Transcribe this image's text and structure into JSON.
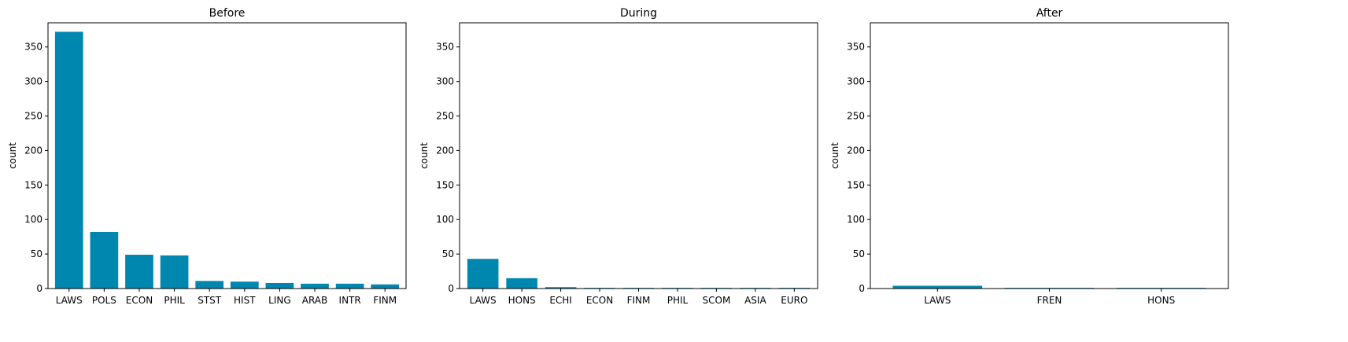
{
  "chart_data": [
    {
      "type": "bar",
      "title": "Before",
      "xlabel": "",
      "ylabel": "count",
      "ylim": [
        0,
        385
      ],
      "yticks": [
        0,
        50,
        100,
        150,
        200,
        250,
        300,
        350
      ],
      "categories": [
        "LAWS",
        "POLS",
        "ECON",
        "PHIL",
        "STST",
        "HIST",
        "LING",
        "ARAB",
        "INTR",
        "FINM"
      ],
      "values": [
        372,
        82,
        49,
        48,
        11,
        10,
        8,
        7,
        7,
        6
      ],
      "color": "#0087b0",
      "grid": false
    },
    {
      "type": "bar",
      "title": "During",
      "xlabel": "",
      "ylabel": "count",
      "ylim": [
        0,
        385
      ],
      "yticks": [
        0,
        50,
        100,
        150,
        200,
        250,
        300,
        350
      ],
      "categories": [
        "LAWS",
        "HONS",
        "ECHI",
        "ECON",
        "FINM",
        "PHIL",
        "SCOM",
        "ASIA",
        "EURO"
      ],
      "values": [
        43,
        15,
        2,
        1,
        1,
        1,
        1,
        1,
        1
      ],
      "color": "#0087b0",
      "grid": false
    },
    {
      "type": "bar",
      "title": "After",
      "xlabel": "",
      "ylabel": "count",
      "ylim": [
        0,
        385
      ],
      "yticks": [
        0,
        50,
        100,
        150,
        200,
        250,
        300,
        350
      ],
      "categories": [
        "LAWS",
        "FREN",
        "HONS"
      ],
      "values": [
        4,
        1,
        1
      ],
      "color": "#0087b0",
      "grid": false
    }
  ]
}
